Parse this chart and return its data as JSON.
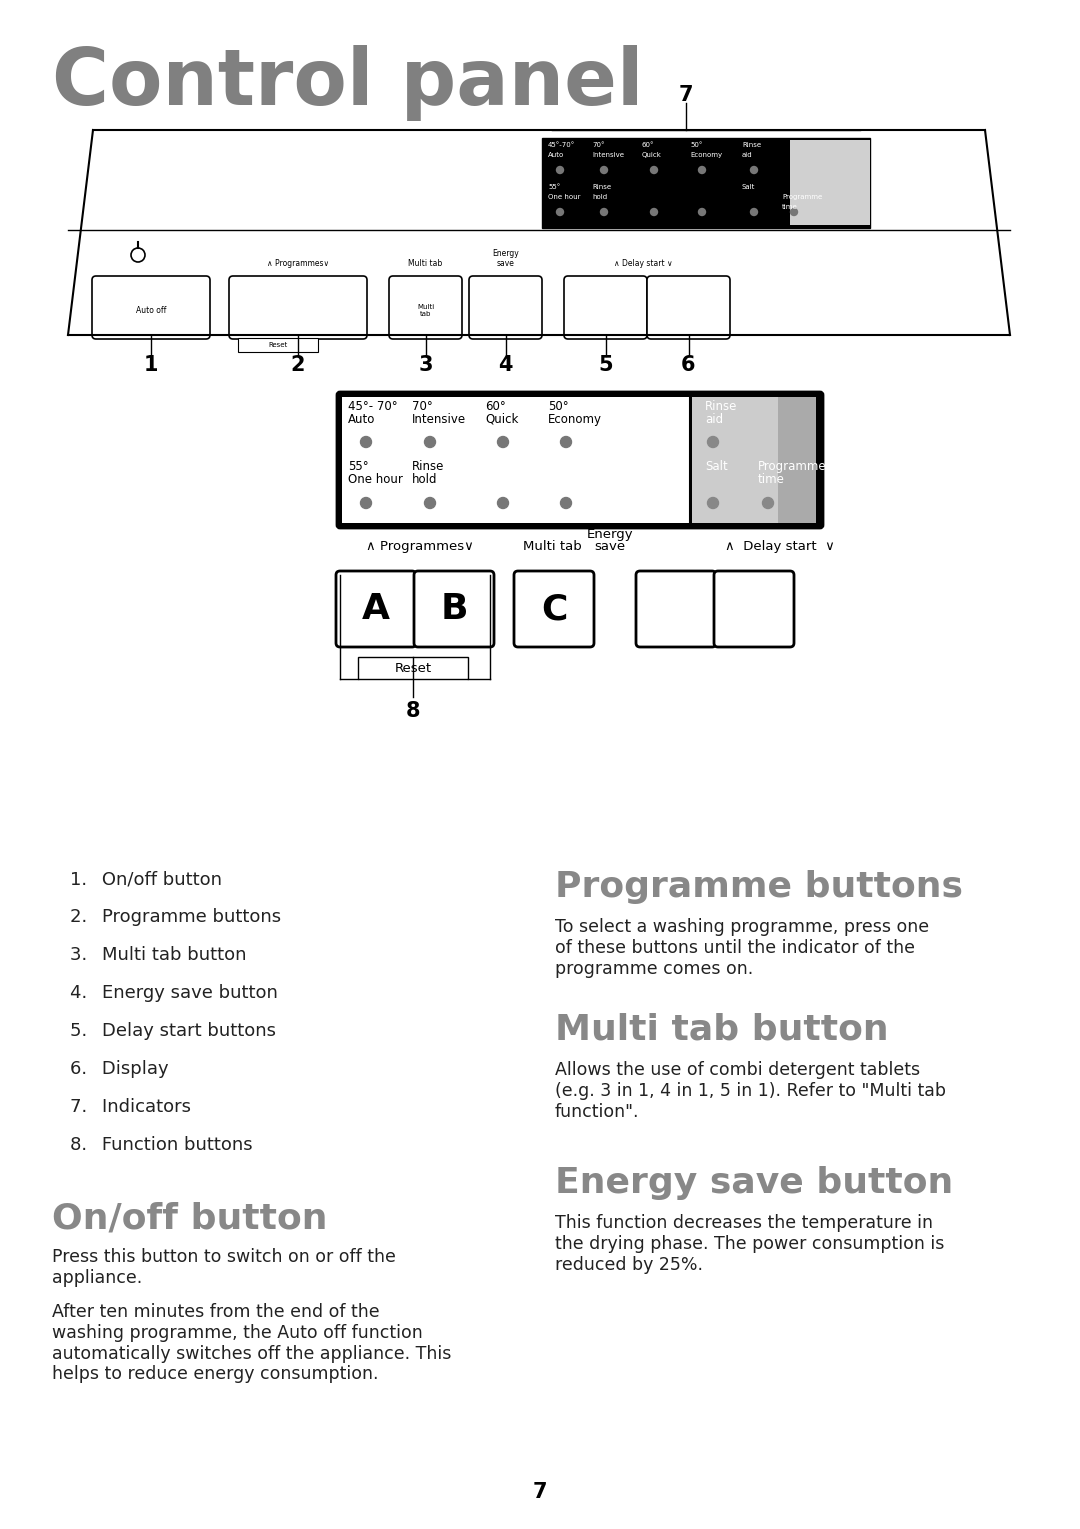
{
  "title": "Control panel",
  "title_color": "#808080",
  "background_color": "#ffffff",
  "page_number": "7",
  "list_items": [
    "On/off button",
    "Programme buttons",
    "Multi tab button",
    "Energy save button",
    "Delay start buttons",
    "Display",
    "Indicators",
    "Function buttons"
  ],
  "section_heading_color": "#888888",
  "onoff_para1": "Press this button to switch on or off the\nappliance.",
  "onoff_para2": "After ten minutes from the end of the\nwashing programme, the Auto off function\nautomatically switches off the appliance. This\nhelps to reduce energy consumption.",
  "programme_text": "To select a washing programme, press one\nof these buttons until the indicator of the\nprogramme comes on.",
  "multitab_text": "Allows the use of combi detergent tablets\n(e.g. 3 in 1, 4 in 1, 5 in 1). Refer to \"Multi tab\nfunction\".",
  "energysave_text": "This function decreases the temperature in\nthe drying phase. The power consumption is\nreduced by 25%.",
  "body_text_color": "#222222"
}
